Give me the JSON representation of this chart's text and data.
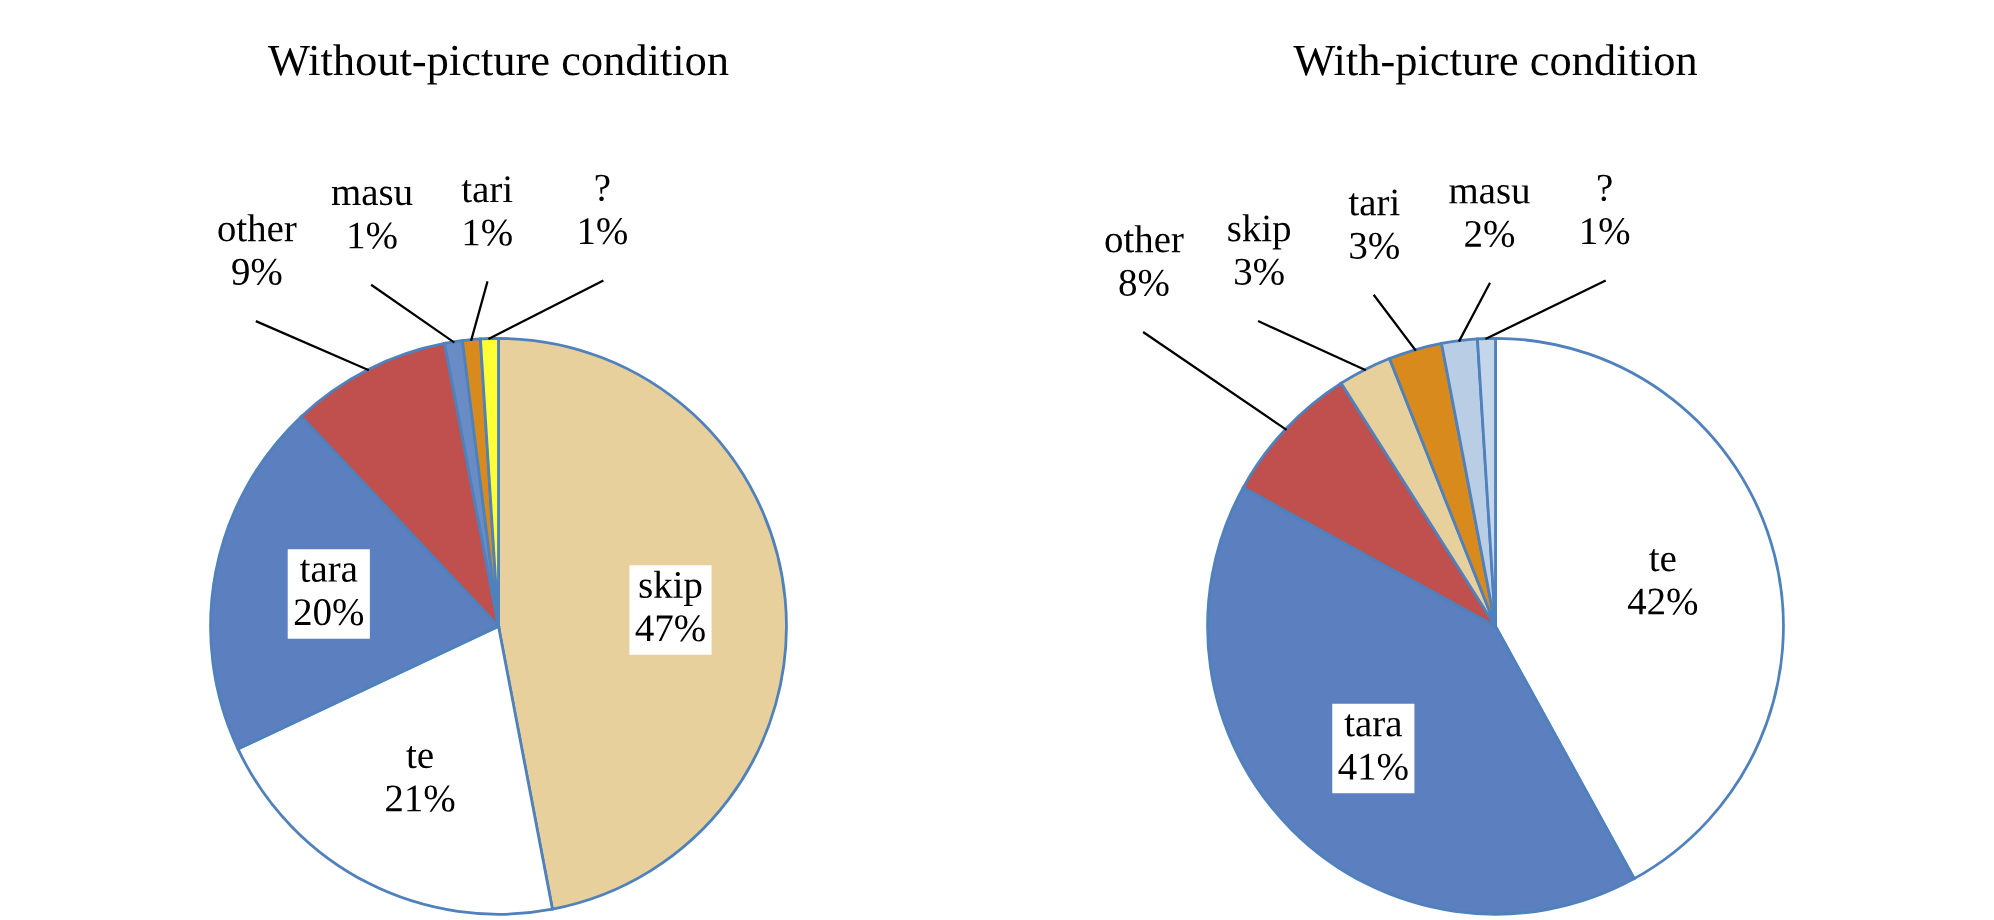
{
  "chart_data": [
    {
      "type": "pie",
      "title": "Without-picture condition",
      "categories": [
        "skip",
        "te",
        "tara",
        "other",
        "masu",
        "tari",
        "?"
      ],
      "values": [
        47,
        21,
        20,
        9,
        1,
        1,
        1
      ],
      "colors": [
        "#e8d09c",
        "#ffffff",
        "#5b7fbf",
        "#c0504d",
        "#6a8cc4",
        "#d98a1c",
        "#ffff33"
      ],
      "value_labels": [
        "47%",
        "21%",
        "20%",
        "9%",
        "1%",
        "1%",
        "1%"
      ]
    },
    {
      "type": "pie",
      "title": "With-picture condition",
      "categories": [
        "te",
        "tara",
        "other",
        "skip",
        "tari",
        "masu",
        "?"
      ],
      "values": [
        42,
        41,
        8,
        3,
        3,
        2,
        1
      ],
      "colors": [
        "#ffffff",
        "#5b7fbf",
        "#c0504d",
        "#e8d09c",
        "#d98a1c",
        "#b9cde5",
        "#c6d6ea"
      ],
      "value_labels": [
        "42%",
        "41%",
        "8%",
        "3%",
        "3%",
        "2%",
        "1%"
      ]
    }
  ]
}
